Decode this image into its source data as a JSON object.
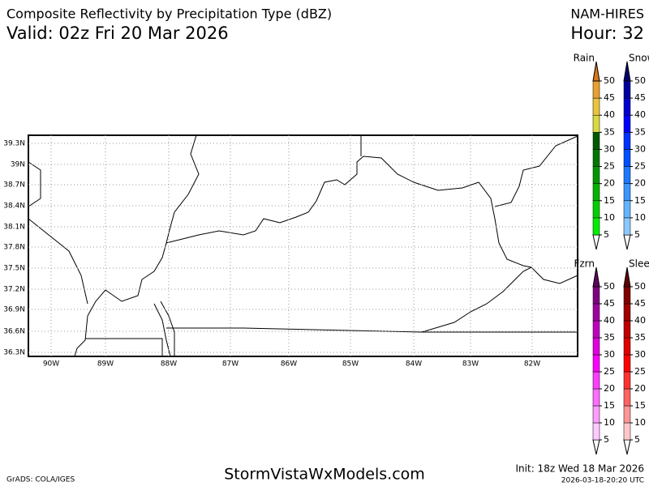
{
  "header": {
    "title": "Composite Reflectivity by Precipitation Type (dBZ)",
    "valid": "Valid: 02z Fri 20 Mar 2026",
    "model": "NAM-HIRES",
    "hour": "Hour: 32"
  },
  "map": {
    "lat_labels": [
      "39.3N",
      "39N",
      "38.7N",
      "38.4N",
      "38.1N",
      "37.8N",
      "37.5N",
      "37.2N",
      "36.9N",
      "36.6N",
      "36.3N"
    ],
    "lon_labels": [
      "90W",
      "89W",
      "88W",
      "87W",
      "86W",
      "85W",
      "84W",
      "83W",
      "82W"
    ]
  },
  "legends": [
    {
      "name": "Rain",
      "levels": [
        5,
        10,
        15,
        20,
        25,
        30,
        35,
        40,
        45,
        50
      ],
      "colors": [
        "#00ee00",
        "#00d000",
        "#00b400",
        "#009600",
        "#007800",
        "#005a00",
        "#d8d840",
        "#e8c43c",
        "#e8a030",
        "#d87818"
      ]
    },
    {
      "name": "Snow",
      "levels": [
        5,
        10,
        15,
        20,
        25,
        30,
        35,
        40,
        45,
        50
      ],
      "colors": [
        "#8cc8ff",
        "#64b4ff",
        "#3c96ff",
        "#1e78ff",
        "#0050ff",
        "#0032ff",
        "#0000ff",
        "#0000d0",
        "#0000a0",
        "#000070"
      ]
    },
    {
      "name": "Fzrn",
      "levels": [
        5,
        10,
        15,
        20,
        25,
        30,
        35,
        40,
        45,
        50
      ],
      "colors": [
        "#ffc8ff",
        "#ff9cff",
        "#ff6cff",
        "#ff3cff",
        "#ff00ff",
        "#e000e0",
        "#c000c0",
        "#a000a0",
        "#800080",
        "#600060"
      ]
    },
    {
      "name": "Sleet",
      "levels": [
        5,
        10,
        15,
        20,
        25,
        30,
        35,
        40,
        45,
        50
      ],
      "colors": [
        "#ffc8c8",
        "#ff9696",
        "#ff6464",
        "#ff3232",
        "#ff0000",
        "#e00000",
        "#c00000",
        "#a00000",
        "#800000",
        "#600000"
      ]
    }
  ],
  "footer": {
    "credit": "GrADS: COLA/IGES",
    "site": "StormVistaWxModels.com",
    "init": "Init: 18z Wed 18 Mar 2026",
    "stamp": "2026-03-18-20:20 UTC"
  }
}
